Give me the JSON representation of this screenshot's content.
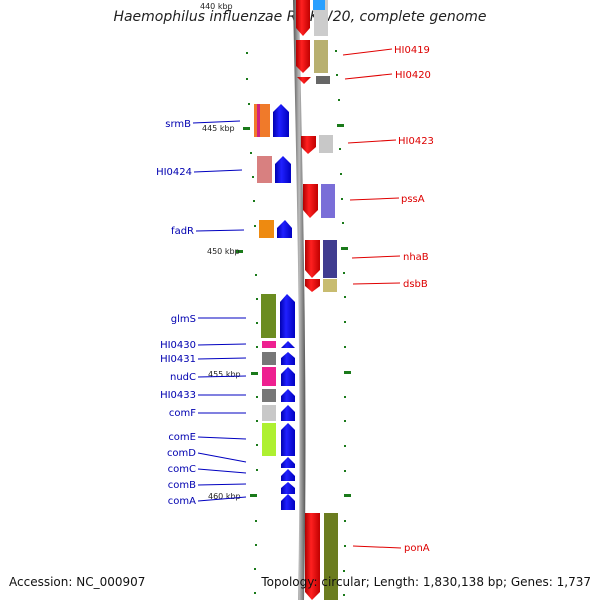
{
  "title": "Haemophilus influenzae Rd KW20, complete genome",
  "footer": {
    "accession": "Accession: NC_000907",
    "topology": "Topology: circular; Length: 1,830,138 bp; Genes: 1,737"
  },
  "ticks": [
    "440 kbp",
    "445 kbp",
    "450 kbp",
    "455 kbp",
    "460 kbp"
  ],
  "forward_genes": [
    "HI0419",
    "HI0420",
    "HI0423",
    "pssA",
    "nhaB",
    "dsbB",
    "ponA"
  ],
  "reverse_genes": [
    "srmB",
    "HI0424",
    "fadR",
    "glmS",
    "HI0430",
    "HI0431",
    "nudC",
    "HI0433",
    "comF",
    "comE",
    "comD",
    "comC",
    "comB",
    "comA"
  ],
  "colors": {
    "forward_strand": "#ff0000",
    "reverse_strand": "#0000ff",
    "backbone": "#888888",
    "tick": "#1a7a1a"
  }
}
